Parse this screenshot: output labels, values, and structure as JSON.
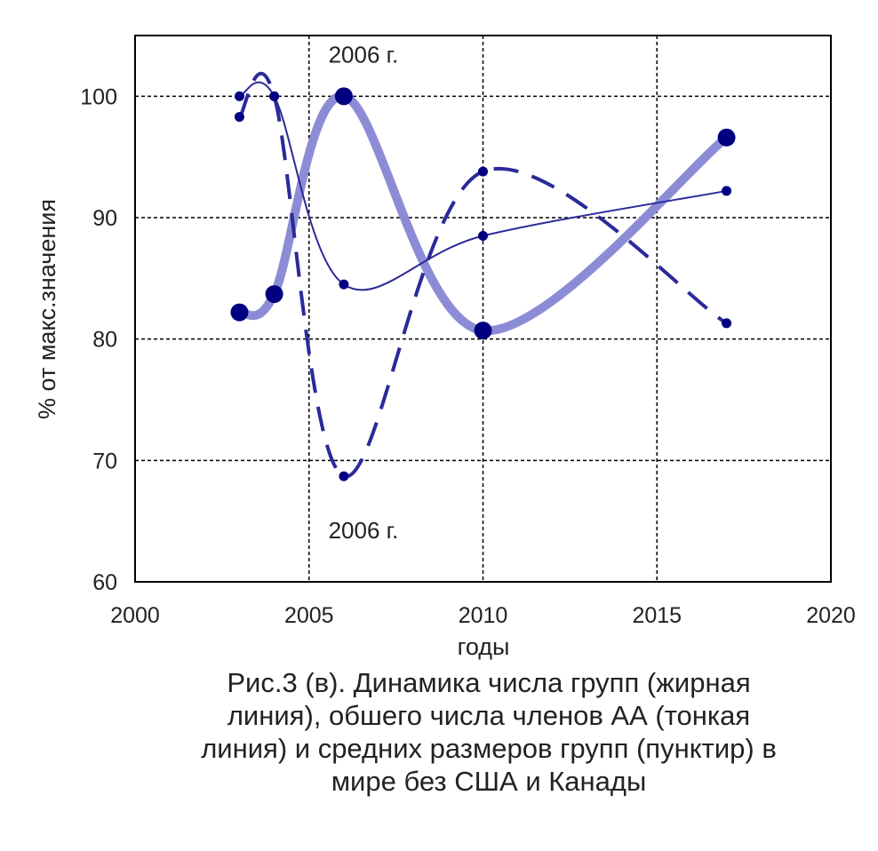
{
  "chart_data": {
    "type": "line",
    "title": "",
    "xlabel": "годы",
    "ylabel": "% от макс.значения",
    "xlim": [
      2000,
      2020
    ],
    "ylim": [
      60,
      105
    ],
    "xticks": [
      2000,
      2005,
      2010,
      2015,
      2020
    ],
    "yticks": [
      60,
      70,
      80,
      90,
      100
    ],
    "grid": true,
    "x": [
      2003,
      2004,
      2006,
      2010,
      2017
    ],
    "series": [
      {
        "name": "число групп (жирная линия)",
        "style": "thick",
        "values": [
          82.2,
          83.7,
          100,
          80.7,
          96.6
        ]
      },
      {
        "name": "общее число членов АА (тонкая линия)",
        "style": "thin",
        "values": [
          100,
          100,
          84.5,
          88.5,
          92.2
        ]
      },
      {
        "name": "средние размеры групп (пунктир)",
        "style": "dashed",
        "values": [
          98.3,
          100,
          68.7,
          93.8,
          81.3
        ]
      }
    ],
    "annotations": [
      {
        "text": "2006 г.",
        "x": 2006,
        "y": 103.5
      },
      {
        "text": "2006 г.",
        "x": 2006,
        "y": 64.3
      }
    ],
    "colors": {
      "marker": "#000080",
      "thick": "#8c8cd6",
      "thin": "#2a2a9a",
      "dashed": "#2a2a9a"
    }
  },
  "caption": [
    "Рис.3 (в). Динамика числа групп (жирная",
    "линия), обшего числа членов АА (тонкая",
    "линия) и средних размеров групп (пунктир) в",
    "мире без США и Канады"
  ]
}
